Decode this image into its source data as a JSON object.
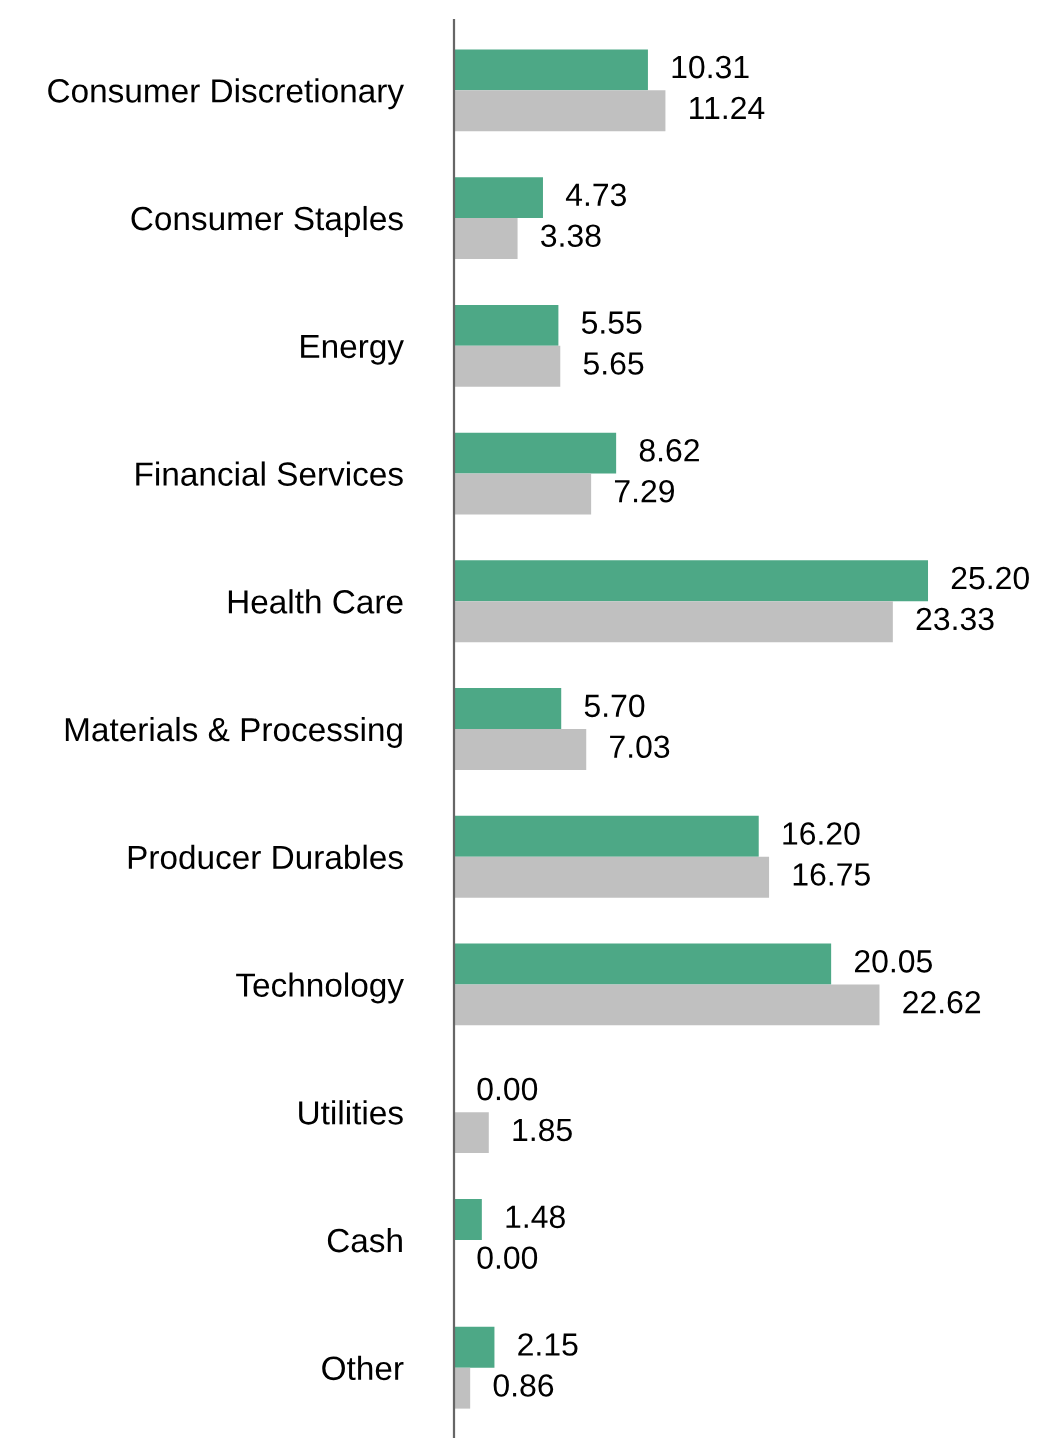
{
  "chart_data": {
    "type": "bar",
    "orientation": "horizontal",
    "data_labels": true,
    "grid": false,
    "legend": false,
    "categories": [
      "Consumer Discretionary",
      "Consumer Staples",
      "Energy",
      "Financial Services",
      "Health Care",
      "Materials & Processing",
      "Producer Durables",
      "Technology",
      "Utilities",
      "Cash",
      "Other"
    ],
    "series": [
      {
        "color": "#4da886",
        "values": [
          10.31,
          4.73,
          5.55,
          8.62,
          25.2,
          5.7,
          16.2,
          20.05,
          0.0,
          1.48,
          2.15
        ],
        "value_labels": [
          "10.31",
          "4.73",
          "5.55",
          "8.62",
          "25.20",
          "5.70",
          "16.20",
          "20.05",
          "0.00",
          "1.48",
          "2.15"
        ]
      },
      {
        "color": "#c0c0c0",
        "values": [
          11.24,
          3.38,
          5.65,
          7.29,
          23.33,
          7.03,
          16.75,
          22.62,
          1.85,
          0.0,
          0.86
        ],
        "value_labels": [
          "11.24",
          "3.38",
          "5.65",
          "7.29",
          "23.33",
          "7.03",
          "16.75",
          "22.62",
          "1.85",
          "0.00",
          "0.86"
        ]
      }
    ]
  }
}
